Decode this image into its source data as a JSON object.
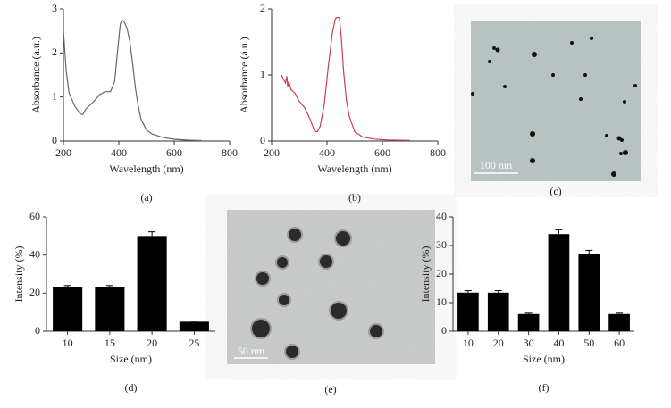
{
  "chart_data": [
    {
      "type": "line",
      "panel_label": "(a)",
      "xlabel": "Wavelength (nm)",
      "ylabel": "Absorbance (a.u.)",
      "color": "#666666",
      "x": [
        200,
        210,
        220,
        240,
        260,
        270,
        280,
        290,
        310,
        330,
        350,
        370,
        385,
        395,
        405,
        412,
        420,
        430,
        440,
        450,
        460,
        470,
        480,
        500,
        520,
        560,
        600,
        650,
        700
      ],
      "values": [
        2.5,
        1.6,
        1.1,
        0.8,
        0.62,
        0.6,
        0.72,
        0.78,
        0.9,
        1.05,
        1.12,
        1.12,
        1.35,
        2.0,
        2.65,
        2.75,
        2.7,
        2.55,
        2.25,
        1.75,
        1.2,
        0.8,
        0.5,
        0.25,
        0.16,
        0.08,
        0.04,
        0.02,
        0.01
      ],
      "xlim": [
        200,
        800
      ],
      "xticks": [
        200,
        400,
        600,
        800
      ],
      "ylim": [
        0,
        3
      ],
      "yticks": [
        0,
        1,
        2,
        3
      ]
    },
    {
      "type": "line",
      "panel_label": "(b)",
      "xlabel": "Wavelength (nm)",
      "ylabel": "Absorbance (a.u.)",
      "color": "#c8404c",
      "x": [
        235,
        245,
        250,
        255,
        258,
        262,
        270,
        285,
        300,
        320,
        340,
        355,
        365,
        375,
        390,
        405,
        420,
        430,
        435,
        445,
        452,
        460,
        470,
        480,
        500,
        530,
        570,
        620,
        700
      ],
      "values": [
        1.0,
        0.92,
        0.88,
        0.98,
        0.82,
        0.9,
        0.78,
        0.72,
        0.6,
        0.5,
        0.32,
        0.15,
        0.14,
        0.22,
        0.55,
        1.15,
        1.65,
        1.85,
        1.87,
        1.87,
        1.55,
        1.05,
        0.62,
        0.38,
        0.14,
        0.06,
        0.03,
        0.015,
        0.01
      ],
      "xlim": [
        200,
        800
      ],
      "xticks": [
        200,
        400,
        600,
        800
      ],
      "ylim": [
        0,
        2
      ],
      "yticks": [
        0,
        1,
        2
      ]
    },
    {
      "type": "bar",
      "panel_label": "(d)",
      "xlabel": "Size (nm)",
      "ylabel": "Intensity (%)",
      "color": "#000000",
      "categories": [
        "10",
        "15",
        "20",
        "25"
      ],
      "values": [
        23,
        23,
        50,
        5
      ],
      "errors": [
        1,
        1,
        2.2,
        0.3
      ],
      "ylim": [
        0,
        60
      ],
      "yticks": [
        0,
        20,
        40,
        60
      ]
    },
    {
      "type": "bar",
      "panel_label": "(f)",
      "xlabel": "Size (nm)",
      "ylabel": "Intensity (%)",
      "color": "#000000",
      "categories": [
        "10",
        "20",
        "30",
        "40",
        "50",
        "60"
      ],
      "values": [
        13.5,
        13.5,
        6,
        34,
        27,
        6
      ],
      "errors": [
        0.7,
        0.7,
        0.3,
        1.5,
        1.3,
        0.3
      ],
      "ylim": [
        0,
        40
      ],
      "yticks": [
        0,
        10,
        20,
        30,
        40
      ]
    }
  ],
  "images": [
    {
      "panel_label": "(c)",
      "scale_bar": "100 nm"
    },
    {
      "panel_label": "(e)",
      "scale_bar": "50 nm"
    }
  ]
}
